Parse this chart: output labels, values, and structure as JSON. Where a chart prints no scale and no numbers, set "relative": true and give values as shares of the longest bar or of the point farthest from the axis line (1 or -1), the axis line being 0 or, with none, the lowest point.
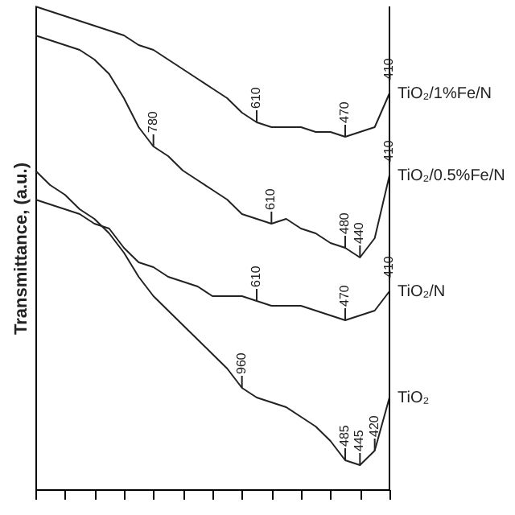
{
  "chart_data": {
    "type": "line",
    "relative": true,
    "legend": "right",
    "ylabel": "Transmittance, (a.u.)",
    "categories": [
      null,
      null,
      null,
      null,
      null,
      null,
      null,
      null,
      null,
      null,
      null,
      null,
      null,
      null,
      null,
      null,
      null,
      null,
      null,
      null,
      null,
      null,
      null,
      null,
      null
    ],
    "series": [
      {
        "name": "TiO₂/1%Fe/N",
        "color": "#222222",
        "values": [
          1.0,
          0.99,
          0.98,
          0.97,
          0.96,
          0.95,
          0.94,
          0.92,
          0.91,
          0.89,
          0.87,
          0.85,
          0.83,
          0.81,
          0.78,
          0.76,
          0.75,
          0.75,
          0.75,
          0.74,
          0.74,
          0.73,
          0.74,
          0.75,
          0.82
        ]
      },
      {
        "name": "TiO₂/0.5%Fe/N",
        "color": "#222222",
        "values": [
          0.94,
          0.93,
          0.92,
          0.91,
          0.89,
          0.86,
          0.81,
          0.75,
          0.71,
          0.69,
          0.66,
          0.64,
          0.62,
          0.6,
          0.57,
          0.56,
          0.55,
          0.56,
          0.54,
          0.53,
          0.51,
          0.5,
          0.48,
          0.52,
          0.65
        ]
      },
      {
        "name": "TiO₂/N",
        "color": "#222222",
        "values": [
          0.6,
          0.59,
          0.58,
          0.57,
          0.55,
          0.54,
          0.5,
          0.47,
          0.46,
          0.44,
          0.43,
          0.42,
          0.4,
          0.4,
          0.4,
          0.39,
          0.38,
          0.38,
          0.38,
          0.37,
          0.36,
          0.35,
          0.36,
          0.37,
          0.41
        ]
      },
      {
        "name": "TiO₂",
        "color": "#222222",
        "values": [
          0.66,
          0.63,
          0.61,
          0.58,
          0.56,
          0.53,
          0.49,
          0.44,
          0.4,
          0.37,
          0.34,
          0.31,
          0.28,
          0.25,
          0.21,
          0.19,
          0.18,
          0.17,
          0.15,
          0.13,
          0.1,
          0.06,
          0.05,
          0.08,
          0.19
        ]
      }
    ],
    "annotations": [
      {
        "text": "610",
        "y": 0.76
      },
      {
        "text": "470",
        "y": 0.73
      },
      {
        "text": "410",
        "y": 0.82
      },
      {
        "text": "780",
        "y": 0.71
      },
      {
        "text": "610",
        "y": 0.55
      },
      {
        "text": "480",
        "y": 0.5
      },
      {
        "text": "440",
        "y": 0.48
      },
      {
        "text": "410",
        "y": 0.65
      },
      {
        "text": "610",
        "y": 0.39
      },
      {
        "text": "470",
        "y": 0.35
      },
      {
        "text": "410",
        "y": 0.41
      },
      {
        "text": "960",
        "y": 0.21
      },
      {
        "text": "485",
        "y": 0.06
      },
      {
        "text": "445",
        "y": 0.05
      },
      {
        "text": "420",
        "y": 0.08
      }
    ]
  }
}
